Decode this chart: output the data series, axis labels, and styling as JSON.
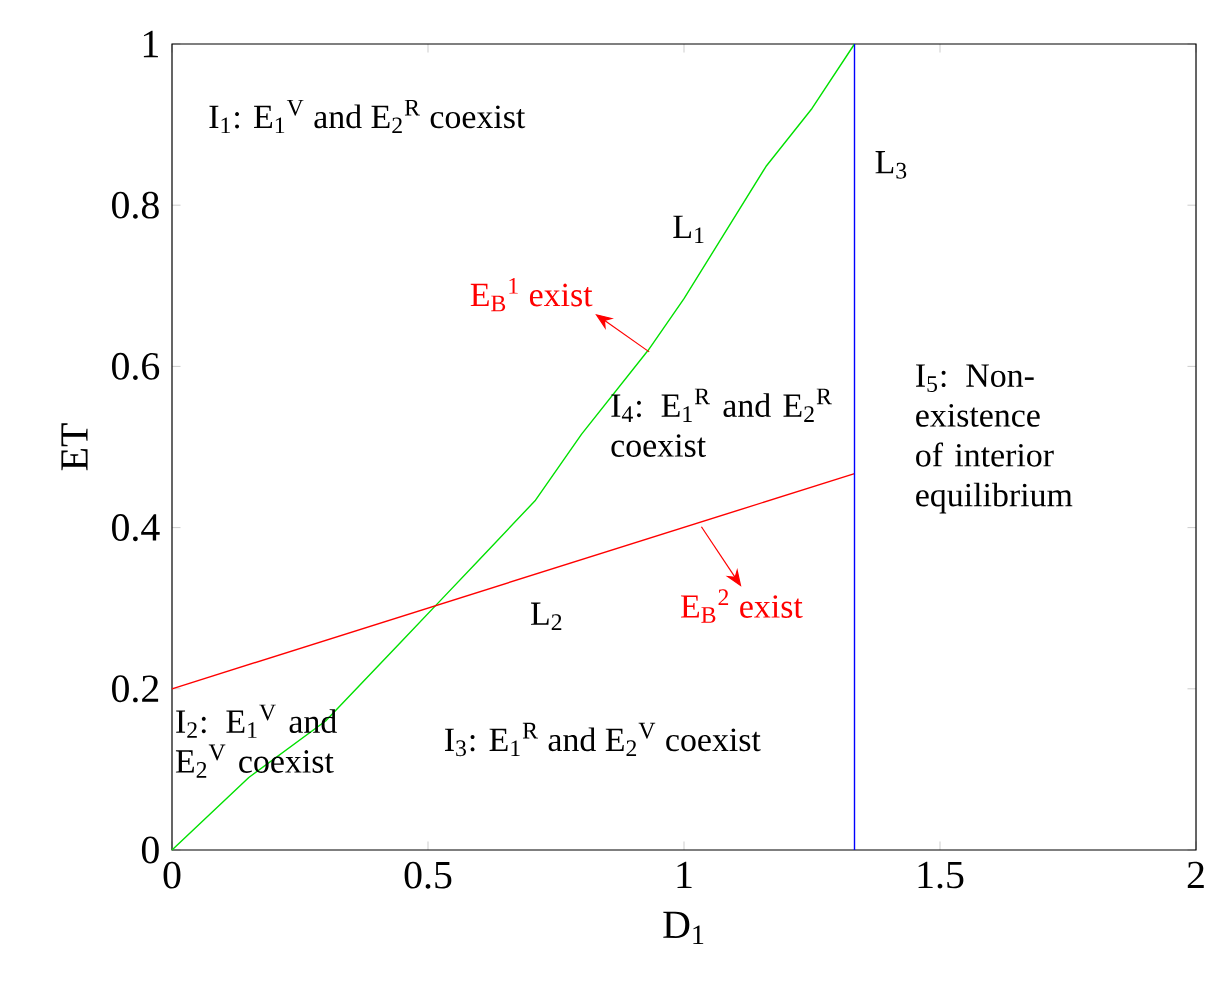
{
  "chart_data": {
    "type": "line",
    "xlabel": "D$_{1}$",
    "ylabel": "ET",
    "xlim": [
      0,
      2
    ],
    "ylim": [
      0,
      1
    ],
    "xticks": [
      0,
      0.5,
      1,
      1.5,
      2
    ],
    "yticks": [
      0,
      0.2,
      0.4,
      0.6,
      0.8,
      1
    ],
    "marker": "none",
    "series": [
      {
        "name": "L$_{1}$",
        "color": "#00e000",
        "x": [
          0,
          0.15,
          0.3,
          0.45,
          0.525,
          0.6,
          0.71,
          0.8,
          0.93,
          1.0,
          1.16,
          1.25,
          1.333
        ],
        "values": [
          0,
          0.09,
          0.16,
          0.26,
          0.31,
          0.36,
          0.434,
          0.516,
          0.62,
          0.684,
          0.848,
          0.92,
          1
        ]
      },
      {
        "name": "L$_{2}$",
        "color": "#ff0000",
        "x": [
          0,
          1.333
        ],
        "values": [
          0.2,
          0.467
        ]
      },
      {
        "name": "L$_{3}$",
        "color": "#0000ff",
        "x": [
          1.333,
          1.333
        ],
        "values": [
          0,
          1
        ]
      }
    ],
    "annotations": [
      "I$_{1}$:  E$_{1}$$^{V}$ and E$_{2}$$^{R}$ coexist",
      {
        "text": "E$_{B}$$^{1}$ exist",
        "x": 0.932,
        "y": 0.618
      },
      "I$_{4}$: E$_{1}$$^{R}$ and E$_{2}$$^{R}$ coexist",
      {
        "text": "E$_{B}$$^{2}$ exist",
        "x": 1.034,
        "y": 0.401
      },
      "I$_{2}$: E$_{1}$$^{V}$ and E$_{2}$$^{V}$ coexist",
      "I$_{3}$:  E$_{1}$$^{R}$ and E$_{2}$$^{V}$ coexist",
      "I$_{5}$: Non-existence of interior equilibrium"
    ]
  }
}
